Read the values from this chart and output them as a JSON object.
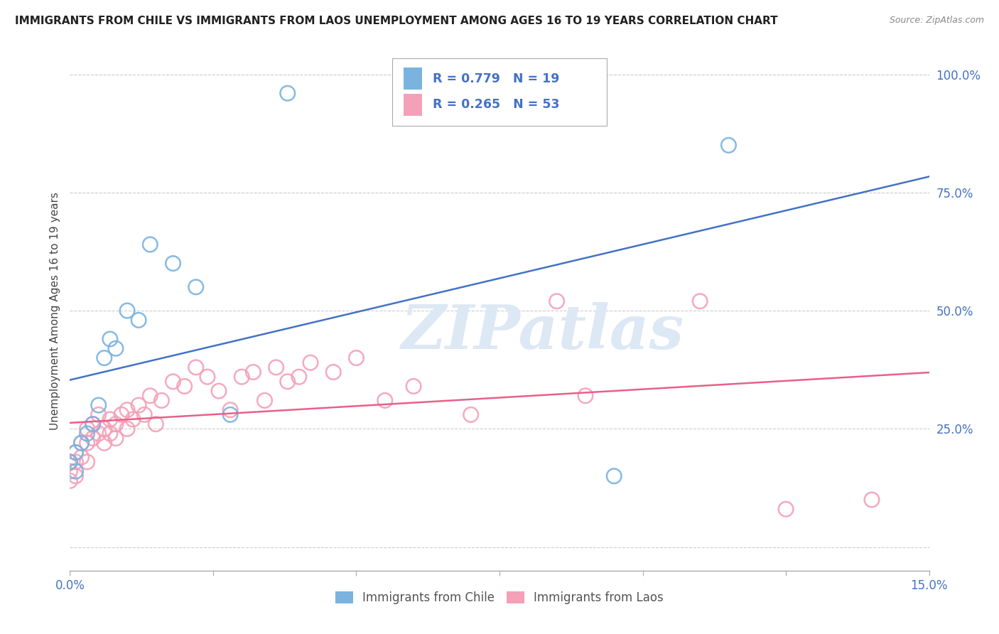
{
  "title": "IMMIGRANTS FROM CHILE VS IMMIGRANTS FROM LAOS UNEMPLOYMENT AMONG AGES 16 TO 19 YEARS CORRELATION CHART",
  "source": "Source: ZipAtlas.com",
  "ylabel": "Unemployment Among Ages 16 to 19 years",
  "xlim": [
    0.0,
    0.15
  ],
  "ylim": [
    -0.05,
    1.05
  ],
  "chile_color": "#7ab3e0",
  "laos_color": "#f4a0b8",
  "chile_line_color": "#4472c4",
  "laos_line_color": "#e8608a",
  "chile_R": 0.779,
  "chile_N": 19,
  "laos_R": 0.265,
  "laos_N": 53,
  "legend_label_chile": "Immigrants from Chile",
  "legend_label_laos": "Immigrants from Laos",
  "watermark_text": "ZIPatlas",
  "title_color": "#222222",
  "source_color": "#888888",
  "tick_color": "#4472c4",
  "ylabel_color": "#444444",
  "grid_color": "#cccccc",
  "chile_x": [
    0.0,
    0.001,
    0.001,
    0.002,
    0.003,
    0.004,
    0.005,
    0.006,
    0.007,
    0.008,
    0.01,
    0.012,
    0.014,
    0.018,
    0.022,
    0.028,
    0.038,
    0.095,
    0.115
  ],
  "chile_y": [
    0.18,
    0.2,
    0.16,
    0.22,
    0.24,
    0.26,
    0.3,
    0.4,
    0.44,
    0.42,
    0.5,
    0.48,
    0.64,
    0.6,
    0.55,
    0.28,
    0.96,
    0.15,
    0.85
  ],
  "laos_x": [
    0.0,
    0.0,
    0.0,
    0.001,
    0.001,
    0.001,
    0.002,
    0.002,
    0.003,
    0.003,
    0.003,
    0.004,
    0.004,
    0.005,
    0.005,
    0.006,
    0.006,
    0.007,
    0.007,
    0.008,
    0.008,
    0.009,
    0.01,
    0.01,
    0.011,
    0.012,
    0.013,
    0.014,
    0.015,
    0.016,
    0.018,
    0.02,
    0.022,
    0.024,
    0.026,
    0.028,
    0.03,
    0.032,
    0.034,
    0.036,
    0.038,
    0.04,
    0.042,
    0.046,
    0.05,
    0.055,
    0.06,
    0.07,
    0.085,
    0.09,
    0.11,
    0.125,
    0.14
  ],
  "laos_y": [
    0.18,
    0.16,
    0.14,
    0.2,
    0.18,
    0.15,
    0.22,
    0.19,
    0.25,
    0.22,
    0.18,
    0.26,
    0.23,
    0.28,
    0.24,
    0.25,
    0.22,
    0.27,
    0.24,
    0.26,
    0.23,
    0.28,
    0.29,
    0.25,
    0.27,
    0.3,
    0.28,
    0.32,
    0.26,
    0.31,
    0.35,
    0.34,
    0.38,
    0.36,
    0.33,
    0.29,
    0.36,
    0.37,
    0.31,
    0.38,
    0.35,
    0.36,
    0.39,
    0.37,
    0.4,
    0.31,
    0.34,
    0.28,
    0.52,
    0.32,
    0.52,
    0.08,
    0.1
  ]
}
